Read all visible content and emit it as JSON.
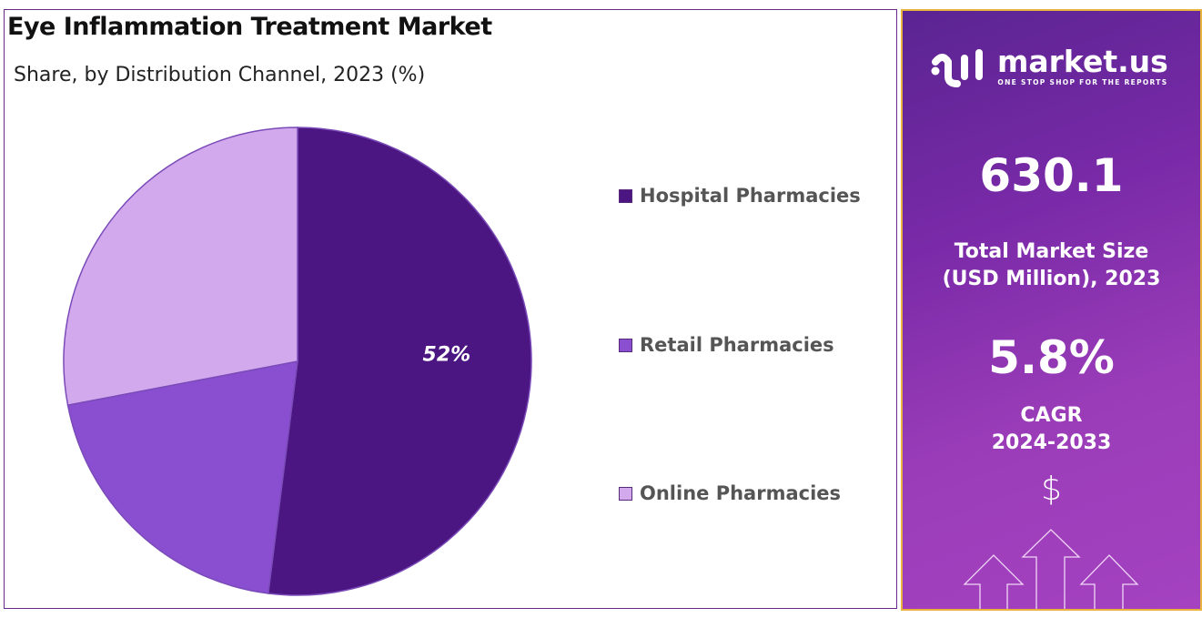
{
  "title": "Eye Inflammation Treatment Market",
  "subtitle": "Share, by Distribution Channel, 2023 (%)",
  "chart_data": {
    "type": "pie",
    "categories": [
      "Hospital Pharmacies",
      "Retail Pharmacies",
      "Online Pharmacies"
    ],
    "values": [
      52,
      20,
      28
    ],
    "colors": [
      "#4b1582",
      "#8a4fd0",
      "#d3a9ee"
    ],
    "data_labels": [
      "52%",
      "",
      ""
    ],
    "legend_position": "right"
  },
  "sidebar": {
    "brand": "market.us",
    "tagline": "ONE STOP SHOP FOR THE REPORTS",
    "market_size": "630.1",
    "market_size_label_1": "Total Market Size",
    "market_size_label_2": "(USD Million), 2023",
    "cagr": "5.8%",
    "cagr_label_1": "CAGR",
    "cagr_label_2": "2024-2033",
    "icon": "dollar-growth-arrows-icon",
    "dollar": "$"
  }
}
